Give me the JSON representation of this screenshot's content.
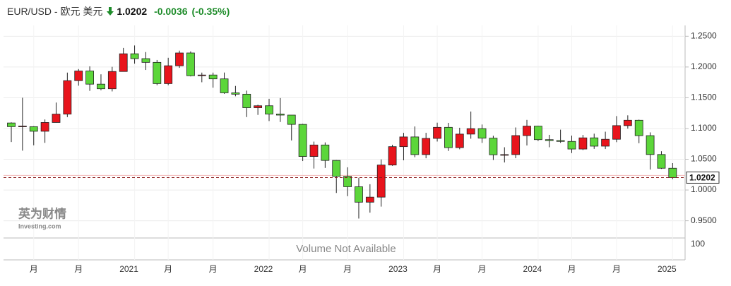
{
  "header": {
    "symbol": "EUR/USD - 欧元 美元",
    "price": "1.0202",
    "change": "-0.0036",
    "change_pct": "(-0.35%)"
  },
  "chart_data": {
    "type": "candlestick",
    "categories": [
      null,
      null,
      "月",
      null,
      null,
      null,
      "月",
      null,
      null,
      null,
      null,
      "2021",
      null,
      null,
      "月",
      null,
      null,
      null,
      "月",
      null,
      null,
      null,
      null,
      "2022",
      null,
      null,
      "月",
      null,
      null,
      null,
      "月",
      null,
      null,
      null,
      null,
      "2023",
      null,
      null,
      "月",
      null,
      null,
      null,
      "月",
      null,
      null,
      null,
      null,
      "2024",
      null,
      null,
      "月",
      null,
      null,
      null,
      "月",
      null,
      null,
      null,
      null,
      "2025"
    ],
    "open": [
      1.109,
      1.103,
      1.103,
      1.0955,
      1.1098,
      1.1234,
      1.1778,
      1.1935,
      1.1721,
      1.1646,
      1.1927,
      1.2215,
      1.2136,
      1.2075,
      1.173,
      1.202,
      1.2228,
      1.1858,
      1.187,
      1.1807,
      1.158,
      1.1558,
      1.1338,
      1.137,
      1.1235,
      1.1218,
      1.1067,
      1.0545,
      1.0732,
      1.0481,
      1.0222,
      1.0053,
      0.9802,
      0.9884,
      1.0406,
      1.0705,
      1.0863,
      1.0576,
      1.0839,
      1.1019,
      1.0689,
      1.0909,
      1.0998,
      1.0843,
      1.0573,
      1.0576,
      1.0885,
      1.1039,
      1.0819,
      1.0804,
      1.079,
      1.0666,
      1.0848,
      1.0713,
      1.0825,
      1.1047,
      1.1134,
      1.0884,
      1.0577,
      1.0354
    ],
    "high": [
      1.11,
      1.15,
      1.1038,
      1.1147,
      1.1422,
      1.1909,
      1.1966,
      1.2011,
      1.1881,
      1.2003,
      1.231,
      1.235,
      1.2243,
      1.2114,
      1.215,
      1.2266,
      1.2254,
      1.1909,
      1.1909,
      1.191,
      1.1692,
      1.1616,
      1.1386,
      1.1483,
      1.1495,
      1.1185,
      1.1076,
      1.0787,
      1.0774,
      1.0486,
      1.0369,
      1.0198,
      1.0094,
      1.0497,
      1.0736,
      1.0929,
      1.1033,
      1.093,
      1.1095,
      1.1092,
      1.1012,
      1.1276,
      1.1065,
      1.0882,
      1.0695,
      1.1017,
      1.114,
      1.1046,
      1.0897,
      1.0981,
      1.0885,
      1.0895,
      1.0916,
      1.0948,
      1.1202,
      1.1214,
      1.1144,
      1.0937,
      1.063,
      1.0437
    ],
    "low": [
      1.078,
      1.064,
      1.0727,
      1.0767,
      1.1096,
      1.1185,
      1.1696,
      1.1612,
      1.1622,
      1.1603,
      1.1925,
      1.2054,
      1.1952,
      1.1704,
      1.1704,
      1.1986,
      1.1847,
      1.1752,
      1.1664,
      1.1563,
      1.1524,
      1.1186,
      1.1221,
      1.1121,
      1.1106,
      1.0806,
      1.0471,
      1.0349,
      1.0359,
      0.9952,
      0.99,
      0.9536,
      0.9632,
      0.973,
      1.0393,
      1.0483,
      1.0533,
      1.0516,
      1.0788,
      1.0635,
      1.0662,
      1.0834,
      1.0766,
      1.0488,
      1.0448,
      1.0517,
      1.0724,
      1.0795,
      1.0695,
      1.0767,
      1.0601,
      1.065,
      1.0668,
      1.0666,
      1.0778,
      1.0998,
      1.0761,
      1.0333,
      1.0343,
      1.0177
    ],
    "close": [
      1.103,
      1.104,
      1.0955,
      1.1098,
      1.1234,
      1.1778,
      1.1935,
      1.1721,
      1.1646,
      1.1927,
      1.2215,
      1.2136,
      1.2075,
      1.173,
      1.202,
      1.2228,
      1.1858,
      1.187,
      1.1807,
      1.158,
      1.1558,
      1.1338,
      1.137,
      1.1235,
      1.1218,
      1.1067,
      1.0545,
      1.0732,
      1.0481,
      1.0222,
      1.0053,
      0.9802,
      0.9884,
      1.0406,
      1.0705,
      1.0863,
      1.0576,
      1.0839,
      1.1019,
      1.0689,
      1.0909,
      1.0998,
      1.0843,
      1.0573,
      1.0576,
      1.0885,
      1.1039,
      1.0819,
      1.0804,
      1.079,
      1.0666,
      1.0848,
      1.0713,
      1.0825,
      1.1047,
      1.1134,
      1.0884,
      1.0577,
      1.0354,
      1.0202
    ],
    "up_color": "#e8141c",
    "down_color": "#5cd63a",
    "ylim": [
      0.922,
      1.263
    ],
    "yticks": [
      {
        "value": 0.95,
        "label": "0.9500"
      },
      {
        "value": 1.0,
        "label": "1.0000"
      },
      {
        "value": 1.05,
        "label": "1.0500"
      },
      {
        "value": 1.1,
        "label": "1.1000"
      },
      {
        "value": 1.15,
        "label": "1.1500"
      },
      {
        "value": 1.2,
        "label": "1.2000"
      },
      {
        "value": 1.25,
        "label": "1.2500"
      }
    ],
    "last_price": {
      "value": 1.0202,
      "label": "1.0202"
    },
    "previous_close": 1.0238,
    "grid": true,
    "volume": {
      "note": "Volume Not Available",
      "tick": "100"
    },
    "watermark": {
      "brand": "英为财情",
      "site": "Investing.com"
    }
  }
}
